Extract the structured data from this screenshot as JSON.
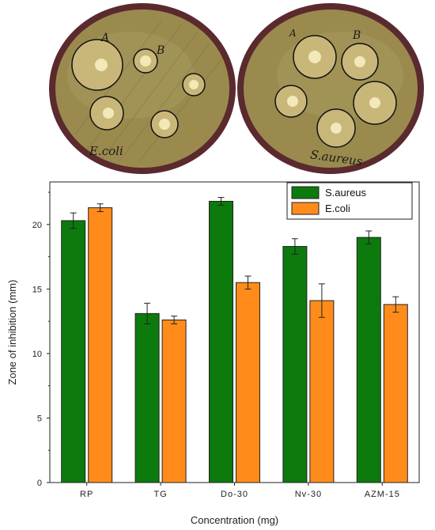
{
  "photo": {
    "plates": [
      {
        "organism_label": "E.coli",
        "disc_labels": [
          "A",
          "B"
        ]
      },
      {
        "organism_label": "S.aureus",
        "disc_labels": [
          "A",
          "B"
        ]
      }
    ],
    "colors": {
      "plate_agar": "#9b8a4e",
      "plate_rim": "#5a2a2e",
      "halo": "#c9b77a",
      "disc": "#f2e8b8"
    }
  },
  "chart_data": {
    "type": "bar",
    "categories": [
      "RP",
      "TG",
      "Do-30",
      "Nv-30",
      "AZM-15"
    ],
    "series": [
      {
        "name": "S.aureus",
        "color": "#0c7a0c",
        "values": [
          20.3,
          13.1,
          21.8,
          18.3,
          19.0
        ],
        "errors": [
          0.6,
          0.8,
          0.3,
          0.6,
          0.5
        ]
      },
      {
        "name": "E.coli",
        "color": "#ff8c1a",
        "values": [
          21.3,
          12.6,
          15.5,
          14.1,
          13.8
        ],
        "errors": [
          0.3,
          0.3,
          0.5,
          1.3,
          0.6
        ]
      }
    ],
    "title": "",
    "xlabel": "Concentration (mg)",
    "ylabel": "Zone of inhibition (mm)",
    "ylim": [
      0,
      23.3
    ],
    "yticks": [
      0,
      5,
      10,
      15,
      20
    ],
    "grid": false,
    "legend_position": "top-right"
  }
}
